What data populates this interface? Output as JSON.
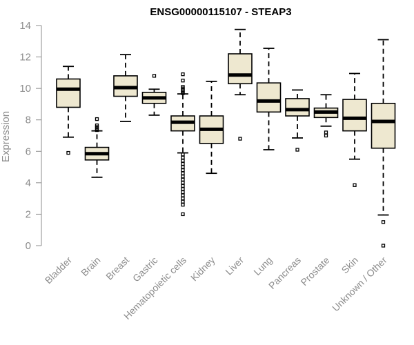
{
  "chart_data": {
    "type": "boxplot",
    "title": "ENSG00000115107 - STEAP3",
    "xlabel": "",
    "ylabel": "Expression",
    "ylim": [
      0,
      14
    ],
    "yticks": [
      0,
      2,
      4,
      6,
      8,
      10,
      12,
      14
    ],
    "colors": {
      "box_fill": "#eee8d0",
      "box_stroke": "#000000",
      "axis": "#8c8c8c"
    },
    "categories": [
      "Bladder",
      "Brain",
      "Breast",
      "Gastric",
      "Hematopoietic cells",
      "Kidney",
      "Liver",
      "Lung",
      "Pancreas",
      "Prostate",
      "Skin",
      "Unknown / Other"
    ],
    "boxes": [
      {
        "name": "Bladder",
        "whisker_low": 6.9,
        "q1": 8.8,
        "median": 9.95,
        "q3": 10.6,
        "whisker_high": 11.4,
        "outliers": [
          5.9
        ]
      },
      {
        "name": "Brain",
        "whisker_low": 4.35,
        "q1": 5.45,
        "median": 5.85,
        "q3": 6.25,
        "whisker_high": 7.3,
        "outliers": [
          7.35,
          7.45,
          7.55,
          7.65,
          8.05
        ]
      },
      {
        "name": "Breast",
        "whisker_low": 7.9,
        "q1": 9.5,
        "median": 10.05,
        "q3": 10.8,
        "whisker_high": 12.15,
        "outliers": []
      },
      {
        "name": "Gastric",
        "whisker_low": 8.3,
        "q1": 9.05,
        "median": 9.4,
        "q3": 9.75,
        "whisker_high": 9.95,
        "outliers": [
          10.8
        ]
      },
      {
        "name": "Hematopoietic cells",
        "whisker_low": 5.9,
        "q1": 7.3,
        "median": 7.85,
        "q3": 8.25,
        "whisker_high": 9.65,
        "outliers": [
          2.0,
          2.6,
          2.8,
          3.0,
          3.2,
          3.4,
          3.6,
          3.8,
          4.0,
          4.2,
          4.4,
          4.6,
          4.8,
          5.0,
          5.2,
          5.4,
          5.6,
          5.8,
          9.7,
          9.8,
          9.9,
          10.0,
          10.1,
          10.5,
          10.9
        ]
      },
      {
        "name": "Kidney",
        "whisker_low": 4.6,
        "q1": 6.5,
        "median": 7.4,
        "q3": 8.25,
        "whisker_high": 10.45,
        "outliers": []
      },
      {
        "name": "Liver",
        "whisker_low": 9.6,
        "q1": 10.3,
        "median": 10.85,
        "q3": 12.2,
        "whisker_high": 13.75,
        "outliers": [
          6.8
        ]
      },
      {
        "name": "Lung",
        "whisker_low": 6.1,
        "q1": 8.5,
        "median": 9.2,
        "q3": 10.35,
        "whisker_high": 12.55,
        "outliers": []
      },
      {
        "name": "Pancreas",
        "whisker_low": 6.85,
        "q1": 8.25,
        "median": 8.65,
        "q3": 9.35,
        "whisker_high": 9.9,
        "outliers": [
          6.1
        ]
      },
      {
        "name": "Prostate",
        "whisker_low": 7.6,
        "q1": 8.15,
        "median": 8.5,
        "q3": 8.75,
        "whisker_high": 9.6,
        "outliers": [
          7.0,
          7.2
        ]
      },
      {
        "name": "Skin",
        "whisker_low": 5.5,
        "q1": 7.3,
        "median": 8.1,
        "q3": 9.3,
        "whisker_high": 10.95,
        "outliers": [
          3.85
        ]
      },
      {
        "name": "Unknown / Other",
        "whisker_low": 1.95,
        "q1": 6.2,
        "median": 7.9,
        "q3": 9.05,
        "whisker_high": 13.1,
        "outliers": [
          1.5,
          0.0
        ]
      }
    ]
  }
}
